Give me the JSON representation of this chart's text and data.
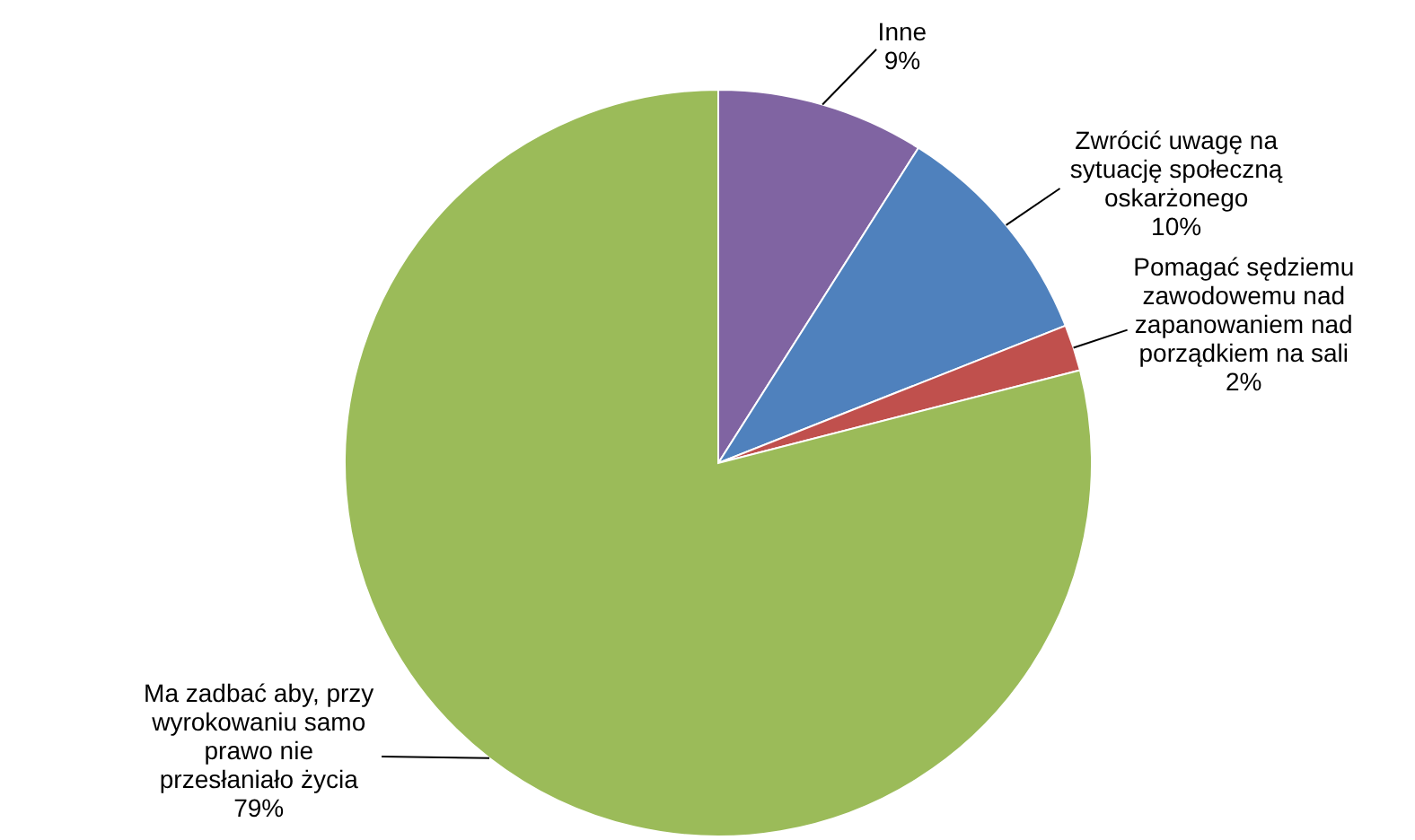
{
  "chart_data": {
    "type": "pie",
    "categories": [
      "Inne",
      "Zwrócić uwagę na sytuację społeczną oskarżonego",
      "Pomagać sędziemu zawodowemu nad zapanowaniem nad porządkiem na sali",
      "Ma zadbać aby, przy wyrokowaniu samo prawo nie przesłaniało życia"
    ],
    "values": [
      9,
      10,
      2,
      79
    ],
    "value_labels": [
      "9%",
      "10%",
      "2%",
      "79%"
    ],
    "colors": [
      "#8064a2",
      "#4f81bd",
      "#c0504d",
      "#9bbb59"
    ]
  }
}
